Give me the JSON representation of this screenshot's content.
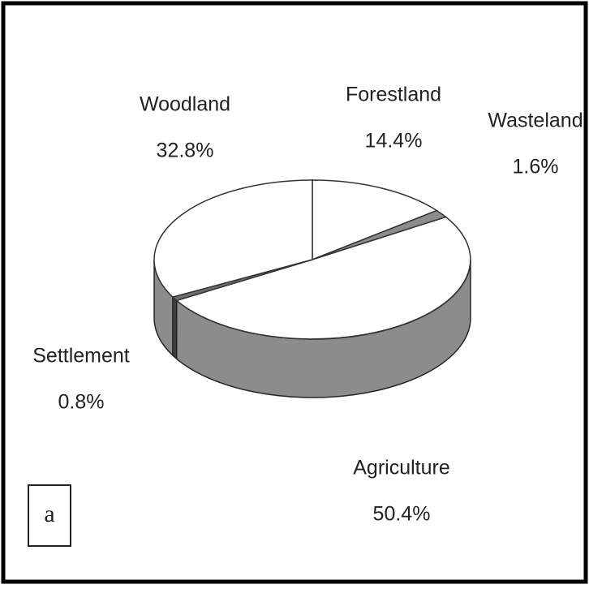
{
  "chart_data": {
    "type": "pie3d",
    "categories": [
      "Forestland",
      "Wasteland",
      "Agriculture",
      "Settlement",
      "Woodland"
    ],
    "values": [
      14.4,
      1.6,
      50.4,
      0.8,
      32.8
    ],
    "value_labels": [
      "14.4%",
      "1.6%",
      "50.4%",
      "0.8%",
      "32.8%"
    ],
    "colors": [
      "#ffffff",
      "#8c8c8c",
      "#ffffff",
      "#6e6e6e",
      "#ffffff"
    ],
    "panel_label": "a"
  }
}
